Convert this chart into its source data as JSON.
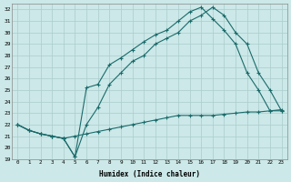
{
  "xlabel": "Humidex (Indice chaleur)",
  "xlim": [
    -0.5,
    23.5
  ],
  "ylim": [
    19,
    32.5
  ],
  "xticks": [
    0,
    1,
    2,
    3,
    4,
    5,
    6,
    7,
    8,
    9,
    10,
    11,
    12,
    13,
    14,
    15,
    16,
    17,
    18,
    19,
    20,
    21,
    22,
    23
  ],
  "yticks": [
    19,
    20,
    21,
    22,
    23,
    24,
    25,
    26,
    27,
    28,
    29,
    30,
    31,
    32
  ],
  "bg_color": "#cce8e8",
  "grid_color": "#aacccc",
  "line_color": "#1a6b6b",
  "line1_x": [
    0,
    1,
    2,
    3,
    4,
    5,
    6,
    7,
    8,
    9,
    10,
    11,
    12,
    13,
    14,
    15,
    16,
    17,
    18,
    19,
    20,
    21,
    22,
    23
  ],
  "line1_y": [
    22.0,
    21.5,
    21.2,
    21.0,
    20.8,
    21.0,
    21.2,
    21.4,
    21.6,
    21.8,
    22.0,
    22.2,
    22.4,
    22.6,
    22.8,
    22.8,
    22.8,
    22.8,
    22.9,
    23.0,
    23.1,
    23.1,
    23.2,
    23.3
  ],
  "line2_x": [
    0,
    1,
    2,
    3,
    4,
    5,
    6,
    7,
    8,
    9,
    10,
    11,
    12,
    13,
    14,
    15,
    16,
    17,
    18,
    19,
    20,
    21,
    22,
    23
  ],
  "line2_y": [
    22.0,
    21.5,
    21.2,
    21.0,
    20.8,
    19.2,
    22.0,
    23.5,
    25.5,
    26.5,
    27.5,
    28.0,
    29.0,
    29.5,
    30.0,
    31.0,
    31.5,
    32.2,
    31.5,
    30.0,
    29.0,
    26.5,
    25.0,
    23.2
  ],
  "line3_x": [
    0,
    1,
    2,
    3,
    4,
    5,
    6,
    7,
    8,
    9,
    10,
    11,
    12,
    13,
    14,
    15,
    16,
    17,
    18,
    19,
    20,
    21,
    22,
    23
  ],
  "line3_y": [
    22.0,
    21.5,
    21.2,
    21.0,
    20.8,
    19.2,
    25.2,
    25.5,
    27.2,
    27.8,
    28.5,
    29.2,
    29.8,
    30.2,
    31.0,
    31.8,
    32.2,
    31.2,
    30.2,
    29.0,
    26.5,
    25.0,
    23.2,
    23.2
  ]
}
